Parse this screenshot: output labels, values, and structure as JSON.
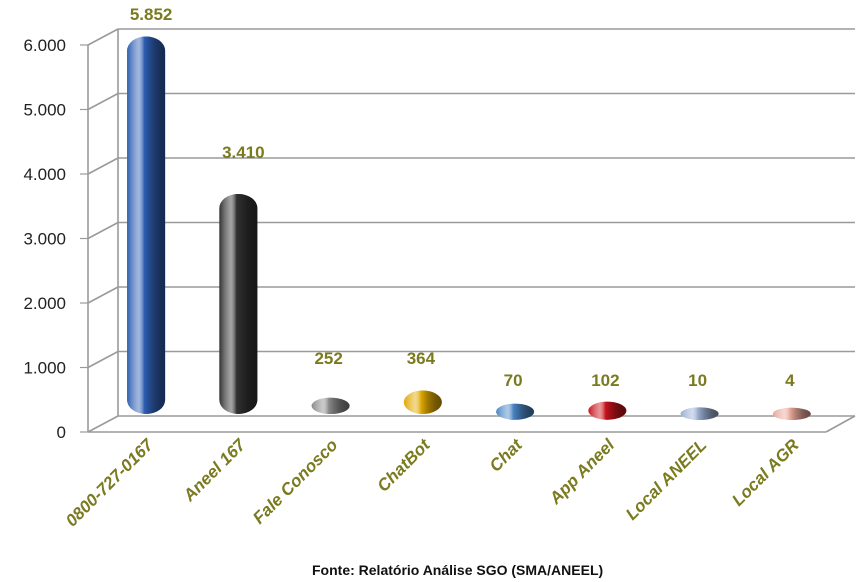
{
  "chart_data": {
    "type": "bar",
    "categories": [
      "0800-727-0167",
      "Aneel 167",
      "Fale Conosco",
      "ChatBot",
      "Chat",
      "App Aneel",
      "Local ANEEL",
      "Local AGR"
    ],
    "values": [
      5852,
      3410,
      252,
      364,
      70,
      102,
      10,
      4
    ],
    "data_labels": [
      "5.852",
      "3.410",
      "252",
      "364",
      "70",
      "102",
      "10",
      "4"
    ],
    "bar_colors": [
      "#2f5fb3",
      "#333333",
      "#8a8a8a",
      "#e0a800",
      "#4a86c5",
      "#c8141c",
      "#9aaed2",
      "#e8a79a"
    ],
    "ylim": [
      0,
      6000
    ],
    "yticks": [
      0,
      1000,
      2000,
      3000,
      4000,
      5000,
      6000
    ],
    "ytick_labels": [
      "0",
      "1.000",
      "2.000",
      "3.000",
      "4.000",
      "5.000",
      "6.000"
    ],
    "grid": true,
    "title": "",
    "xlabel": "",
    "ylabel": ""
  },
  "source_note": "Fonte: Relatório  Análise SGO (SMA/ANEEL)"
}
